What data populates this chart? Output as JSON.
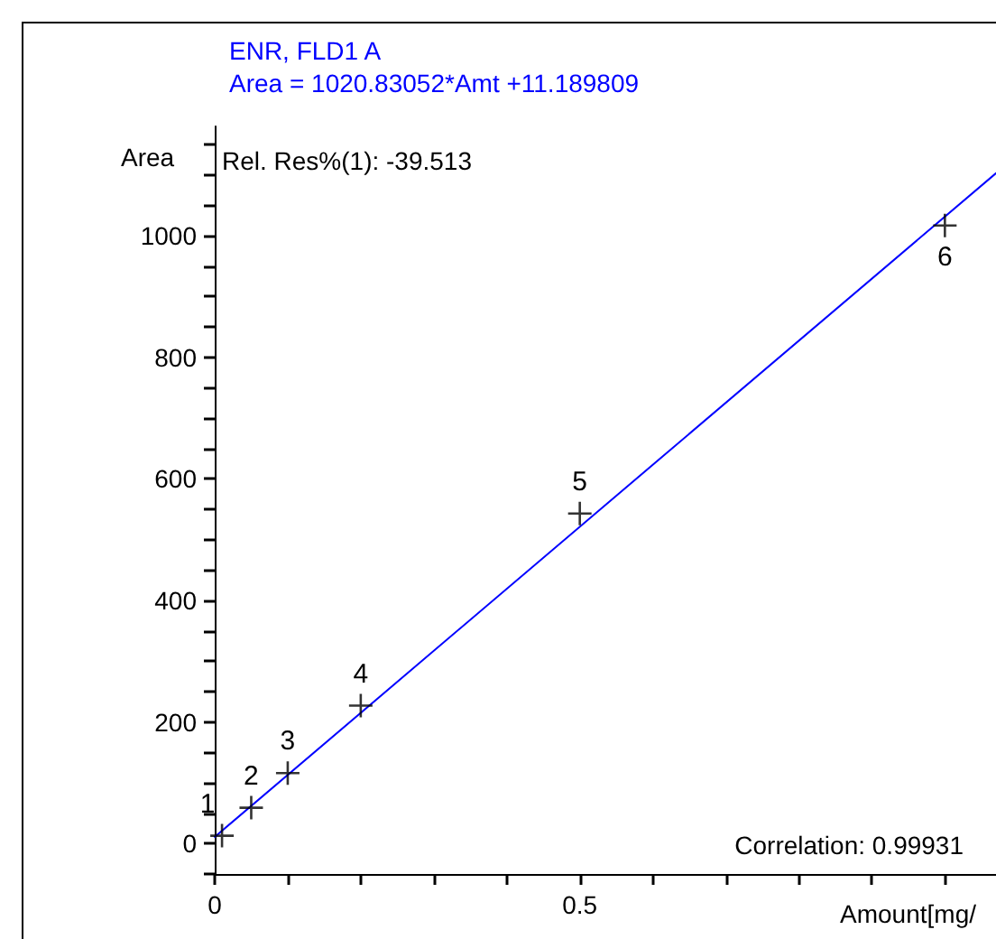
{
  "chart_data": {
    "type": "scatter",
    "title": "ENR, FLD1 A",
    "subtitle": "Area = 1020.83052*Amt +11.189809",
    "xlabel": "Amount[mg/",
    "ylabel": "Area",
    "annotations": [
      "Rel. Res%(1): -39.513",
      "Correlation: 0.99931",
      {
        "text": "1",
        "x": 0.01,
        "y": 13
      },
      {
        "text": "2",
        "x": 0.05,
        "y": 59
      },
      {
        "text": "3",
        "x": 0.1,
        "y": 116
      },
      {
        "text": "4",
        "x": 0.2,
        "y": 227
      },
      {
        "text": "5",
        "x": 0.5,
        "y": 543
      },
      {
        "text": "6",
        "x": 1,
        "y": 1017
      }
    ],
    "xlim": [
      0,
      1.07
    ],
    "xticks": [
      0,
      {
        "value": 0.1,
        "label": null
      },
      {
        "value": 0.2,
        "label": null
      },
      {
        "value": 0.3,
        "label": null
      },
      {
        "value": 0.4,
        "label": null
      },
      0.5,
      {
        "value": 0.6,
        "label": null
      },
      {
        "value": 0.7,
        "label": null
      },
      {
        "value": 0.8,
        "label": null
      },
      {
        "value": 0.9,
        "label": null
      },
      {
        "value": 1,
        "label": null
      }
    ],
    "ylim": [
      -50,
      1180
    ],
    "yticks": [
      {
        "value": -50,
        "label": null
      },
      0,
      {
        "value": 50,
        "label": null
      },
      {
        "value": 100,
        "label": null
      },
      {
        "value": 150,
        "label": null
      },
      200,
      {
        "value": 250,
        "label": null
      },
      {
        "value": 300,
        "label": null
      },
      {
        "value": 350,
        "label": null
      },
      400,
      {
        "value": 450,
        "label": null
      },
      {
        "value": 500,
        "label": null
      },
      {
        "value": 550,
        "label": null
      },
      600,
      {
        "value": 650,
        "label": null
      },
      {
        "value": 700,
        "label": null
      },
      {
        "value": 750,
        "label": null
      },
      800,
      {
        "value": 850,
        "label": null
      },
      {
        "value": 900,
        "label": null
      },
      {
        "value": 950,
        "label": null
      },
      1000,
      {
        "value": 1050,
        "label": null
      },
      {
        "value": 1100,
        "label": null
      },
      {
        "value": 1150,
        "label": null
      }
    ],
    "grid": false,
    "marker": "cross",
    "series": [
      {
        "type": "line",
        "color": "#0000ff",
        "x": [
          0,
          1.07
        ],
        "values": [
          11,
          1103
        ],
        "marker": "none",
        "line_style": "solid"
      },
      {
        "color": "#000000",
        "x": [
          0.01,
          0.05,
          0.1,
          0.2,
          0.5,
          1
        ],
        "values": [
          13,
          59,
          116,
          227,
          543,
          1017
        ]
      }
    ]
  }
}
